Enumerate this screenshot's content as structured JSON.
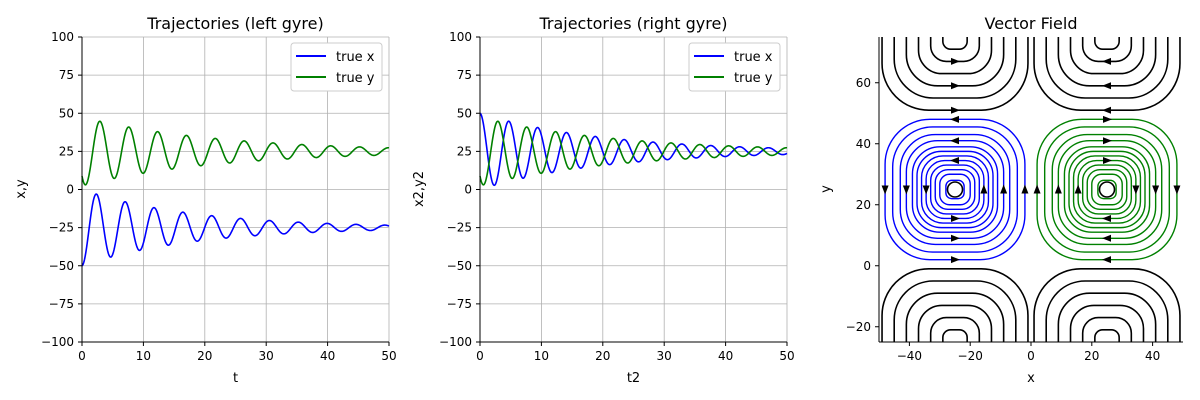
{
  "chart_data": [
    {
      "type": "line",
      "title": "Trajectories (left gyre)",
      "xlabel": "t",
      "ylabel": "x,y",
      "xlim": [
        0,
        50
      ],
      "ylim": [
        -100,
        100
      ],
      "xticks": [
        0,
        10,
        20,
        30,
        40,
        50
      ],
      "yticks": [
        -100,
        -75,
        -50,
        -25,
        0,
        25,
        50,
        75,
        100
      ],
      "grid": true,
      "legend": "top-right",
      "series": [
        {
          "name": "true x",
          "color": "#0000ff",
          "center": -25,
          "amp": -25,
          "decay": 0.055,
          "period": 4.7,
          "phase": 0
        },
        {
          "name": "true y",
          "color": "#008000",
          "center": 25,
          "amp": -15,
          "decay": 0.045,
          "period": 4.7,
          "phase": 0.0
        }
      ]
    },
    {
      "type": "line",
      "title": "Trajectories (right gyre)",
      "xlabel": "t2",
      "ylabel": "x2,y2",
      "xlim": [
        0,
        50
      ],
      "ylim": [
        -100,
        100
      ],
      "xticks": [
        0,
        10,
        20,
        30,
        40,
        50
      ],
      "yticks": [
        -100,
        -75,
        -50,
        -25,
        0,
        25,
        50,
        75,
        100
      ],
      "grid": true,
      "legend": "top-right",
      "series": [
        {
          "name": "true x",
          "color": "#0000ff",
          "center": 25,
          "amp": 25,
          "decay": 0.05,
          "period": 4.7,
          "phase": 0
        },
        {
          "name": "true y",
          "color": "#008000",
          "center": 25,
          "amp": -15,
          "decay": 0.045,
          "period": 4.7,
          "phase": 0.0
        }
      ]
    },
    {
      "type": "streamplot",
      "title": "Vector Field",
      "xlabel": "x",
      "ylabel": "y",
      "xlim": [
        -50,
        50
      ],
      "ylim": [
        -25,
        75
      ],
      "xticks": [
        -40,
        -20,
        0,
        20,
        40
      ],
      "yticks": [
        -20,
        0,
        20,
        40,
        60
      ],
      "grid": false,
      "gyres": [
        {
          "cx": -25,
          "cy": 25,
          "color": "#0000ff"
        },
        {
          "cx": 25,
          "cy": 25,
          "color": "#008000"
        }
      ],
      "stream_color": "#000000"
    }
  ]
}
